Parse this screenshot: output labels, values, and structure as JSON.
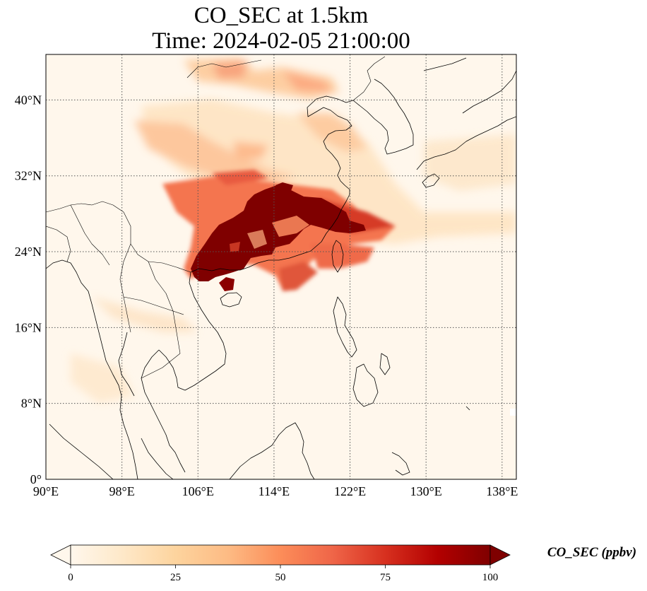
{
  "title": {
    "line1": "CO_SEC at 1.5km",
    "line2": "Time: 2024-02-05 21:00:00"
  },
  "map": {
    "lon_range": [
      90,
      139.5
    ],
    "lat_range": [
      0,
      44.8
    ],
    "lon_ticks": [
      "90°E",
      "98°E",
      "106°E",
      "114°E",
      "122°E",
      "130°E",
      "138°E"
    ],
    "lat_ticks": [
      "0°",
      "8°N",
      "16°N",
      "24°N",
      "32°N",
      "40°N"
    ],
    "gridlines": "dotted",
    "colormap": "OrRd",
    "background_color": "#fff7ec"
  },
  "colorbar": {
    "label": "CO_SEC (ppbv)",
    "range": [
      0,
      100
    ],
    "tick_labels": [
      "0",
      "25",
      "50",
      "75",
      "100"
    ],
    "extend": "both",
    "colors": [
      "#fff7ec",
      "#fee8c8",
      "#fdd49e",
      "#fdbb84",
      "#fc8d59",
      "#ef6548",
      "#d7301f",
      "#b30000",
      "#7f0000"
    ]
  }
}
